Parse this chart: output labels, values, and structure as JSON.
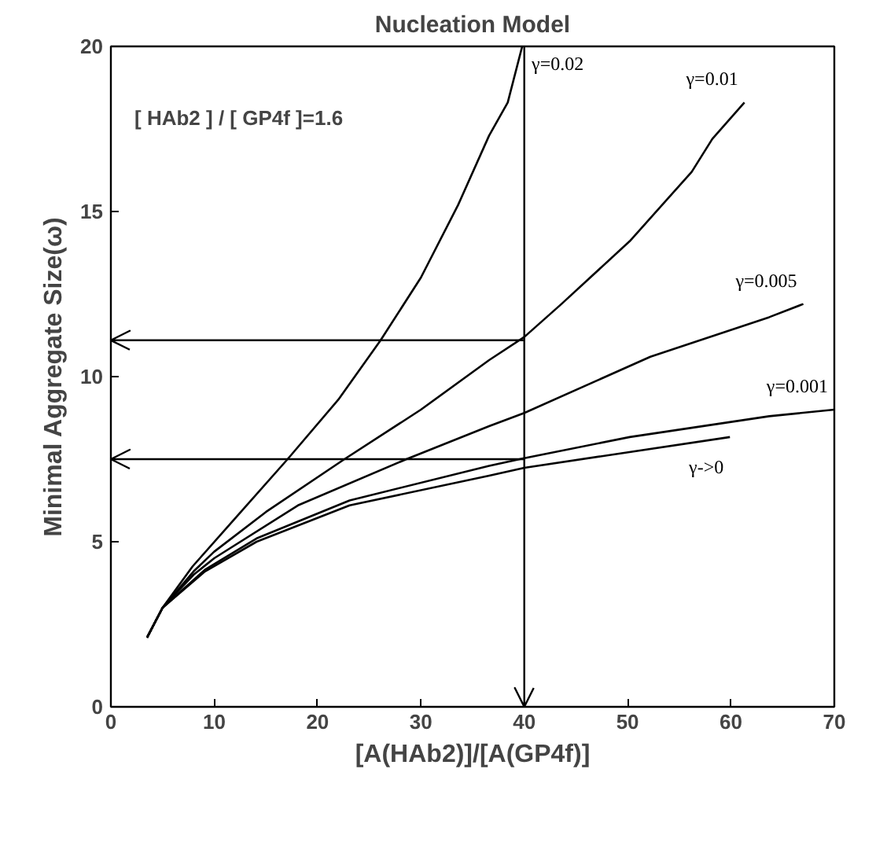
{
  "chart_data": {
    "type": "line",
    "title": "Nucleation Model",
    "xlabel": "[A(HAb2)]/[A(GP4f)]",
    "ylabel": "Minimal Aggregate Size(ω)",
    "annotations": [
      "[ HAb2 ] / [ GP4f ]=1.6"
    ],
    "xlim": [
      0,
      70
    ],
    "ylim": [
      0,
      20
    ],
    "xticks": [
      0,
      10,
      20,
      30,
      40,
      50,
      60,
      70
    ],
    "yticks": [
      0,
      5,
      10,
      15,
      20
    ],
    "grid": false,
    "legend": false,
    "marker": "none",
    "line_style": "solid",
    "ref_lines": [
      {
        "axis": "x",
        "value": 40,
        "label": null,
        "color": "#000000"
      },
      {
        "axis": "y",
        "value": 11.1,
        "label": null,
        "color": "#000000"
      },
      {
        "axis": "y",
        "value": 7.5,
        "label": null,
        "color": "#000000"
      }
    ],
    "series": [
      {
        "name": "γ=0.02",
        "color": "#000000",
        "x": [
          3.5,
          5,
          7.9,
          12,
          17.1,
          22,
          26.1,
          30,
          33.6,
          36.6,
          38.4,
          39.8
        ],
        "values": [
          2.1,
          3.0,
          4.25,
          5.7,
          7.5,
          9.3,
          11.1,
          13.0,
          15.2,
          17.3,
          18.3,
          20
        ]
      },
      {
        "name": "γ=0.01",
        "color": "#000000",
        "x": [
          3.5,
          5,
          8,
          10,
          15,
          22.6,
          30,
          36.6,
          40,
          43.6,
          50.2,
          56.2,
          58.2,
          61.3
        ],
        "values": [
          2.1,
          3.0,
          4.1,
          4.7,
          5.9,
          7.5,
          9.0,
          10.5,
          11.2,
          12.2,
          14.1,
          16.2,
          17.2,
          18.3
        ]
      },
      {
        "name": "γ=0.005",
        "color": "#000000",
        "x": [
          3.5,
          5,
          8,
          10,
          18.1,
          28.6,
          36.6,
          40,
          52.2,
          63.7,
          67
        ],
        "values": [
          2.1,
          3.0,
          4.0,
          4.5,
          6.1,
          7.5,
          8.5,
          8.9,
          10.6,
          11.8,
          12.2
        ]
      },
      {
        "name": "γ=0.001",
        "color": "#000000",
        "x": [
          3.5,
          5,
          9.1,
          14.1,
          23.1,
          36.6,
          40,
          50.2,
          63.7,
          70
        ],
        "values": [
          2.1,
          3.0,
          4.15,
          5.1,
          6.25,
          7.3,
          7.53,
          8.17,
          8.8,
          9.0
        ]
      },
      {
        "name": "γ->0",
        "color": "#000000",
        "x": [
          3.5,
          5,
          9.1,
          14.1,
          23.1,
          36.6,
          40,
          59.9
        ],
        "values": [
          2.1,
          3.0,
          4.1,
          5.0,
          6.1,
          7.0,
          7.24,
          8.17
        ]
      }
    ]
  }
}
